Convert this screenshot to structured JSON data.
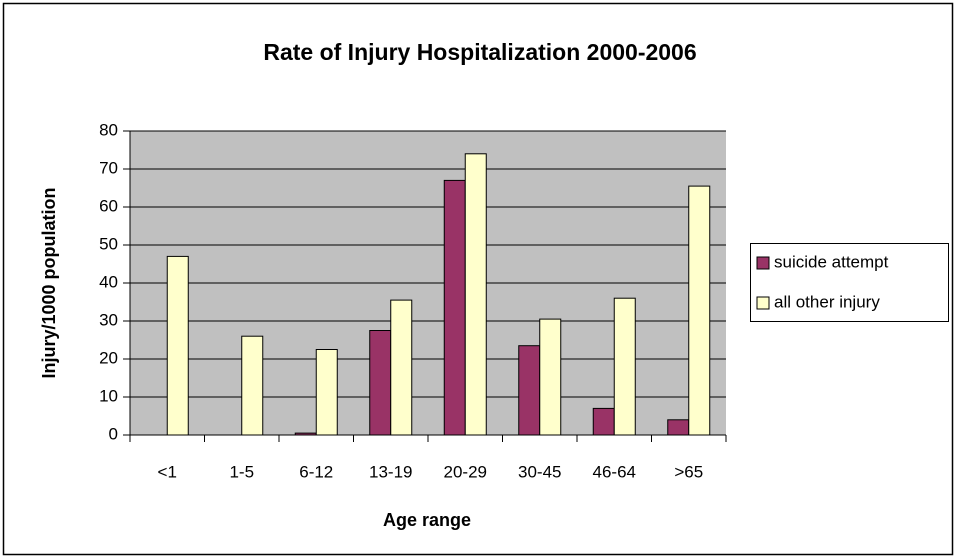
{
  "chart_data": {
    "type": "bar",
    "title": "Rate of Injury Hospitalization 2000-2006",
    "x_label": "Age range",
    "y_label": "Injury/1000 population",
    "categories": [
      "<1",
      "1-5",
      "6-12",
      "13-19",
      "20-29",
      "30-45",
      "46-64",
      ">65"
    ],
    "series": [
      {
        "name": "suicide attempt",
        "color": "#993366",
        "values": [
          0,
          0,
          0.5,
          27.5,
          67,
          23.5,
          7,
          4
        ]
      },
      {
        "name": "all other injury",
        "color": "#ffffcc",
        "values": [
          47,
          26,
          22.5,
          35.5,
          74,
          30.5,
          36,
          65.5
        ]
      }
    ],
    "ylim": [
      0,
      80
    ],
    "yticks": [
      0,
      10,
      20,
      30,
      40,
      50,
      60,
      70,
      80
    ],
    "grid": true,
    "legend": "right",
    "plot_background": "#c0c0c0"
  }
}
